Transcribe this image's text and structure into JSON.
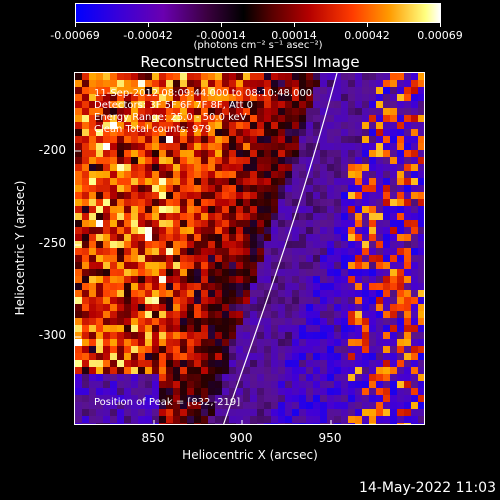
{
  "colorbar": {
    "tick_labels": [
      "-0.00069",
      "-0.00042",
      "-0.00014",
      "0.00014",
      "0.00042",
      "0.00069"
    ],
    "units": "(photons cm⁻² s⁻¹ asec⁻²)"
  },
  "plot": {
    "title": "Reconstructed RHESSI Image",
    "xlabel": "Heliocentric X (arcsec)",
    "ylabel": "Heliocentric Y (arcsec)",
    "xticks": [
      "850",
      "900",
      "950"
    ],
    "yticks": [
      "-200",
      "-250",
      "-300"
    ]
  },
  "info": {
    "time": "11-Sep-2012 08:09:44.000 to 08:10:48.000",
    "detectors": "Detectors: 3F 5F 6F 7F 8F, Att 0",
    "energy": "Energy Range: 25.0 - 50.0 keV",
    "clean": "Clean     Total counts: 979",
    "peak": "Position of Peak = [832,-219]"
  },
  "footer": {
    "date": "14-May-2022 11:03"
  },
  "colors": {
    "negative": "#0000ff",
    "zero": "#000000",
    "positive": "#ffffff",
    "limb": "#ffffff"
  },
  "chart_data": {
    "type": "heatmap",
    "title": "Reconstructed RHESSI Image",
    "xlabel": "Heliocentric X (arcsec)",
    "ylabel": "Heliocentric Y (arcsec)",
    "xlim": [
      810,
      1000
    ],
    "ylim": [
      -350,
      -160
    ],
    "colorbar_range": [
      -0.00069,
      0.00069
    ],
    "peak": [
      832,
      -219
    ]
  }
}
